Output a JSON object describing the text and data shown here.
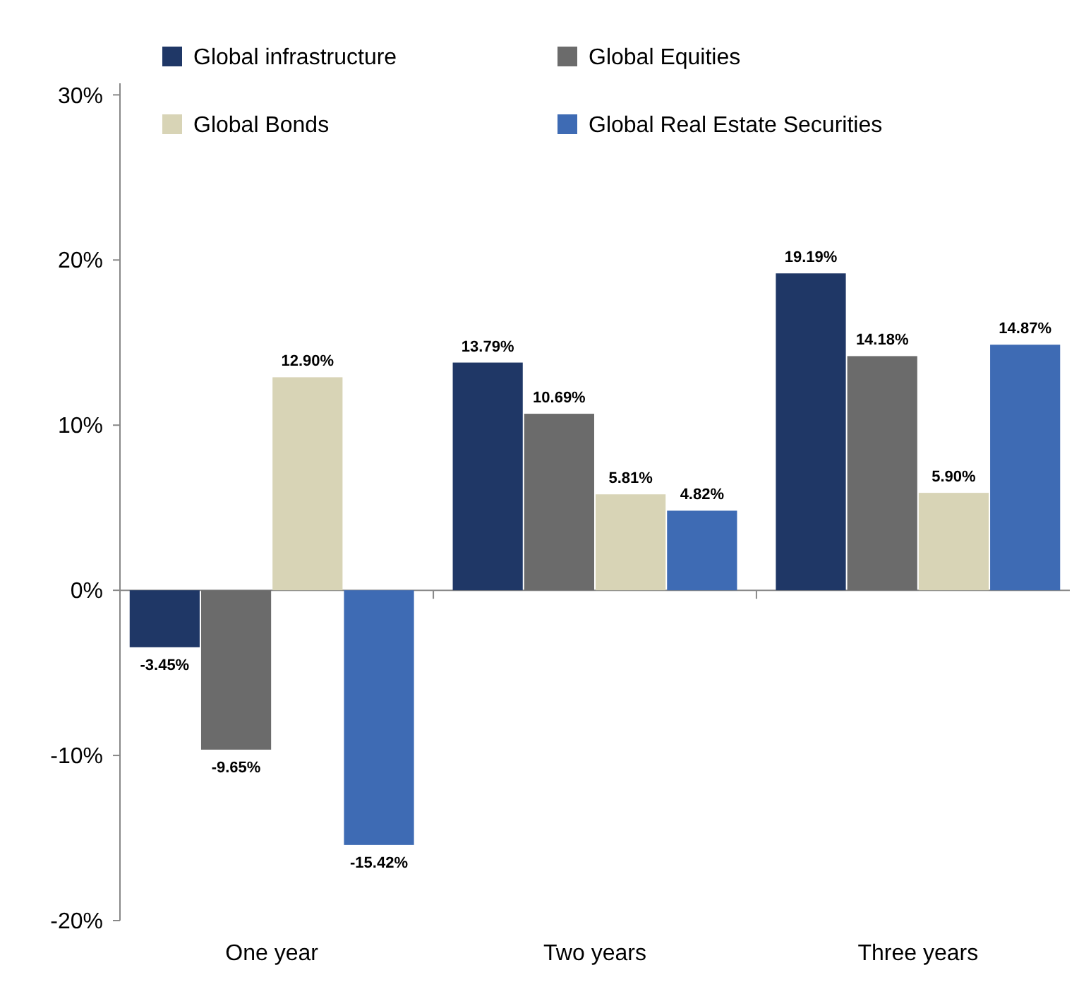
{
  "chart_data": {
    "type": "bar",
    "categories": [
      "One year",
      "Two years",
      "Three years"
    ],
    "series": [
      {
        "name": "Global infrastructure",
        "color": "#1f3766",
        "values": [
          -3.45,
          13.79,
          19.19
        ],
        "value_labels": [
          "-3.45%",
          "13.79%",
          "19.19%"
        ]
      },
      {
        "name": "Global Equities",
        "color": "#6b6b6b",
        "values": [
          -9.65,
          10.69,
          14.18
        ],
        "value_labels": [
          "-9.65%",
          "10.69%",
          "14.18%"
        ]
      },
      {
        "name": "Global Bonds",
        "color": "#d8d4b6",
        "values": [
          12.9,
          5.81,
          5.9
        ],
        "value_labels": [
          "12.90%",
          "5.81%",
          "5.90%"
        ]
      },
      {
        "name": "Global Real Estate Securities",
        "color": "#3e6bb4",
        "values": [
          -15.42,
          4.82,
          14.87
        ],
        "value_labels": [
          "-15.42%",
          "4.82%",
          "14.87%"
        ]
      }
    ],
    "ylim": [
      -20,
      30.7
    ],
    "yticks": [
      {
        "value": -20,
        "label": "-20%"
      },
      {
        "value": -10,
        "label": "-10%"
      },
      {
        "value": 0,
        "label": "0%"
      },
      {
        "value": 10,
        "label": "10%"
      },
      {
        "value": 20,
        "label": "20%"
      },
      {
        "value": 30,
        "label": "30%"
      }
    ],
    "legend": "top"
  }
}
